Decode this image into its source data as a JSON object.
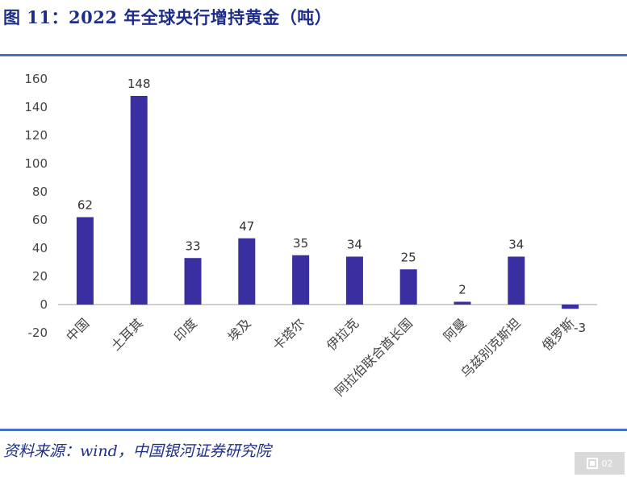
{
  "title": "图 11：2022 年全球央行增持黄金（吨）",
  "source": "资料来源：wind，中国银河证券研究院",
  "badge": {
    "text": "02"
  },
  "colors": {
    "bar": "#3a2fa0",
    "rule": "#4a72c4",
    "title": "#1f2d8a",
    "axis": "#bfbfbf"
  },
  "chart_data": {
    "type": "bar",
    "title": "",
    "xlabel": "",
    "ylabel": "",
    "categories": [
      "中国",
      "土耳其",
      "印度",
      "埃及",
      "卡塔尔",
      "伊拉克",
      "阿拉伯联合酋长国",
      "阿曼",
      "乌兹别克斯坦",
      "俄罗斯"
    ],
    "values": [
      62,
      148,
      33,
      47,
      35,
      34,
      25,
      2,
      34,
      -3
    ],
    "value_labels": [
      "62",
      "148",
      "33",
      "47",
      "35",
      "34",
      "25",
      "2",
      "34",
      "-3"
    ],
    "yticks": [
      160,
      140,
      120,
      100,
      80,
      60,
      40,
      20,
      0,
      -20
    ],
    "ylim": [
      -20,
      160
    ],
    "grid": false,
    "legend": "none"
  }
}
